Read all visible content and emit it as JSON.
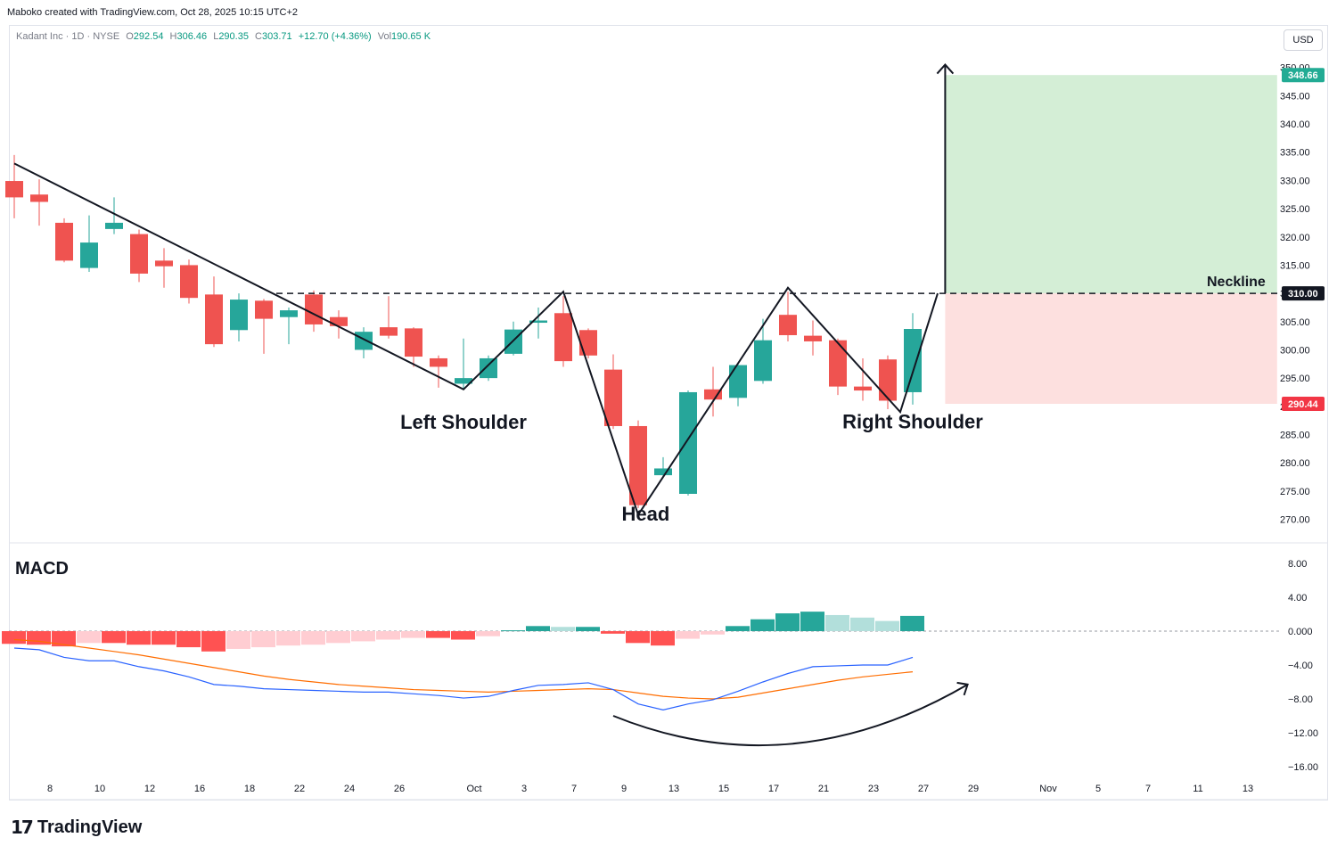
{
  "credit": "Maboko created with TradingView.com, Oct 28, 2025 10:15 UTC+2",
  "legend": {
    "symbol": "Kadant Inc · 1D · NYSE",
    "open_label": "O",
    "open": "292.54",
    "high_label": "H",
    "high": "306.46",
    "low_label": "L",
    "low": "290.35",
    "close_label": "C",
    "close": "303.71",
    "change": "+12.70 (+4.36%)",
    "vol_label": "Vol",
    "vol": "190.65 K"
  },
  "currency": "USD",
  "brand": "TradingView",
  "colors": {
    "up": "#26a69a",
    "down": "#ef5350",
    "target_zone": "#d4eed6",
    "stop_zone": "#fde0df",
    "macd_line": "#2962ff",
    "signal_line": "#ff6d00"
  },
  "chart_data": [
    {
      "type": "candlestick",
      "ylim": [
        266,
        350
      ],
      "price_ticks": [
        270,
        275,
        280,
        285,
        290,
        295,
        300,
        305,
        310,
        315,
        320,
        325,
        330,
        335,
        340,
        345,
        350
      ],
      "x_ticks": [
        {
          "slot": 1,
          "label": "8"
        },
        {
          "slot": 3,
          "label": "10"
        },
        {
          "slot": 5,
          "label": "12"
        },
        {
          "slot": 7,
          "label": "16"
        },
        {
          "slot": 9,
          "label": "18"
        },
        {
          "slot": 11,
          "label": "22"
        },
        {
          "slot": 13,
          "label": "24"
        },
        {
          "slot": 15,
          "label": "26"
        },
        {
          "slot": 18,
          "label": "Oct"
        },
        {
          "slot": 20,
          "label": "3"
        },
        {
          "slot": 22,
          "label": "7"
        },
        {
          "slot": 24,
          "label": "9"
        },
        {
          "slot": 26,
          "label": "13"
        },
        {
          "slot": 28,
          "label": "15"
        },
        {
          "slot": 30,
          "label": "17"
        },
        {
          "slot": 32,
          "label": "21"
        },
        {
          "slot": 34,
          "label": "23"
        },
        {
          "slot": 36,
          "label": "27"
        },
        {
          "slot": 38,
          "label": "29"
        },
        {
          "slot": 41,
          "label": "Nov"
        },
        {
          "slot": 43,
          "label": "5"
        },
        {
          "slot": 45,
          "label": "7"
        },
        {
          "slot": 47,
          "label": "11"
        },
        {
          "slot": 49,
          "label": "13"
        }
      ],
      "candles": [
        {
          "o": 329.9,
          "h": 334.5,
          "l": 323.3,
          "c": 327.0
        },
        {
          "o": 327.5,
          "h": 330.2,
          "l": 322.0,
          "c": 326.2
        },
        {
          "o": 322.5,
          "h": 323.3,
          "l": 315.5,
          "c": 315.8
        },
        {
          "o": 314.5,
          "h": 323.8,
          "l": 313.8,
          "c": 319.0
        },
        {
          "o": 321.4,
          "h": 327.0,
          "l": 320.5,
          "c": 322.5
        },
        {
          "o": 320.5,
          "h": 321.3,
          "l": 312.0,
          "c": 313.5
        },
        {
          "o": 315.8,
          "h": 318.0,
          "l": 311.0,
          "c": 314.8
        },
        {
          "o": 315.0,
          "h": 316.0,
          "l": 308.2,
          "c": 309.2
        },
        {
          "o": 309.8,
          "h": 313.0,
          "l": 300.5,
          "c": 301.0
        },
        {
          "o": 303.5,
          "h": 310.0,
          "l": 301.5,
          "c": 308.9
        },
        {
          "o": 308.7,
          "h": 309.0,
          "l": 299.3,
          "c": 305.5
        },
        {
          "o": 305.8,
          "h": 307.5,
          "l": 301.0,
          "c": 307.0
        },
        {
          "o": 309.8,
          "h": 310.5,
          "l": 303.2,
          "c": 304.5
        },
        {
          "o": 305.8,
          "h": 307.0,
          "l": 302.0,
          "c": 304.2
        },
        {
          "o": 300.0,
          "h": 304.0,
          "l": 298.5,
          "c": 303.2
        },
        {
          "o": 304.0,
          "h": 309.5,
          "l": 302.0,
          "c": 302.5
        },
        {
          "o": 303.8,
          "h": 304.0,
          "l": 297.0,
          "c": 298.8
        },
        {
          "o": 298.5,
          "h": 299.0,
          "l": 293.3,
          "c": 297.0
        },
        {
          "o": 294.0,
          "h": 302.0,
          "l": 293.0,
          "c": 295.0
        },
        {
          "o": 295.0,
          "h": 299.0,
          "l": 294.5,
          "c": 298.5
        },
        {
          "o": 299.3,
          "h": 305.0,
          "l": 299.0,
          "c": 303.6
        },
        {
          "o": 304.8,
          "h": 307.5,
          "l": 302.0,
          "c": 305.2
        },
        {
          "o": 306.5,
          "h": 309.5,
          "l": 297.0,
          "c": 298.0
        },
        {
          "o": 303.5,
          "h": 303.8,
          "l": 298.5,
          "c": 299.0
        },
        {
          "o": 296.5,
          "h": 299.2,
          "l": 286.0,
          "c": 286.5
        },
        {
          "o": 286.5,
          "h": 287.5,
          "l": 272.0,
          "c": 272.5
        },
        {
          "o": 277.8,
          "h": 281.0,
          "l": 277.5,
          "c": 279.0
        },
        {
          "o": 274.5,
          "h": 292.8,
          "l": 274.2,
          "c": 292.5
        },
        {
          "o": 293.0,
          "h": 297.0,
          "l": 288.2,
          "c": 291.2
        },
        {
          "o": 291.5,
          "h": 297.5,
          "l": 290.0,
          "c": 297.3
        },
        {
          "o": 294.5,
          "h": 305.5,
          "l": 294.0,
          "c": 301.7
        },
        {
          "o": 306.2,
          "h": 310.3,
          "l": 301.5,
          "c": 302.6
        },
        {
          "o": 302.5,
          "h": 305.2,
          "l": 299.0,
          "c": 301.5
        },
        {
          "o": 301.7,
          "h": 302.0,
          "l": 292.0,
          "c": 293.5
        },
        {
          "o": 293.5,
          "h": 298.5,
          "l": 291.0,
          "c": 292.8
        },
        {
          "o": 298.3,
          "h": 299.0,
          "l": 289.5,
          "c": 291.0
        },
        {
          "o": 292.5,
          "h": 306.5,
          "l": 290.3,
          "c": 303.7
        }
      ],
      "zigzag_pattern": [
        {
          "slot": 0,
          "y": 333.0
        },
        {
          "slot": 18,
          "y": 293.0
        },
        {
          "slot": 22,
          "y": 310.3
        },
        {
          "slot": 25,
          "y": 270.8
        },
        {
          "slot": 31,
          "y": 311.0
        },
        {
          "slot": 35.5,
          "y": 289.0
        },
        {
          "slot": 37,
          "y": 310.0
        }
      ],
      "neckline": {
        "price": 310.0,
        "label": "Neckline",
        "price_label": "310.00",
        "from_slot": 10.5
      },
      "projection": {
        "target_label": "348.66",
        "target": 348.66,
        "entry": 310.0,
        "stop_label": "290.44",
        "stop": 290.44,
        "from_slot": 37.3,
        "to_slot": 50.6,
        "arrow_top": 350.5
      },
      "annotations": [
        {
          "label": "Left Shoulder",
          "slot": 18,
          "price": 286.0
        },
        {
          "label": "Head",
          "slot": 25.3,
          "price": 269.8
        },
        {
          "label": "Right Shoulder",
          "slot": 36,
          "price": 286.1
        }
      ]
    },
    {
      "type": "macd",
      "title": "MACD",
      "ylim": [
        -17,
        9
      ],
      "ticks": [
        {
          "v": 8,
          "label": "8.00"
        },
        {
          "v": 4,
          "label": "4.00"
        },
        {
          "v": 0,
          "label": "0.000"
        },
        {
          "v": -4,
          "label": "−4.00"
        },
        {
          "v": -8,
          "label": "−8.00"
        },
        {
          "v": -12,
          "label": "−12.00"
        },
        {
          "v": -16,
          "label": "−16.00"
        }
      ],
      "histogram": [
        -1.5,
        -1.6,
        -1.8,
        -1.4,
        -1.4,
        -1.6,
        -1.6,
        -1.9,
        -2.4,
        -2.1,
        -1.9,
        -1.7,
        -1.6,
        -1.4,
        -1.2,
        -1.0,
        -0.8,
        -0.8,
        -1.0,
        -0.6,
        0.1,
        0.6,
        0.5,
        0.5,
        -0.3,
        -1.4,
        -1.7,
        -0.9,
        -0.4,
        0.6,
        1.4,
        2.1,
        2.3,
        1.9,
        1.6,
        1.2,
        1.8
      ],
      "macd": [
        -2.0,
        -2.2,
        -3.1,
        -3.5,
        -3.5,
        -4.2,
        -4.7,
        -5.4,
        -6.3,
        -6.5,
        -6.8,
        -6.9,
        -7.0,
        -7.1,
        -7.2,
        -7.2,
        -7.4,
        -7.6,
        -7.9,
        -7.7,
        -7.0,
        -6.4,
        -6.3,
        -6.1,
        -6.9,
        -8.6,
        -9.3,
        -8.6,
        -8.1,
        -7.1,
        -6.0,
        -5.0,
        -4.2,
        -4.1,
        -4.0,
        -4.0,
        -3.1
      ],
      "signal": [
        -1.0,
        -1.2,
        -1.6,
        -2.0,
        -2.4,
        -2.8,
        -3.3,
        -3.8,
        -4.3,
        -4.8,
        -5.3,
        -5.7,
        -6.0,
        -6.3,
        -6.5,
        -6.7,
        -6.9,
        -7.0,
        -7.1,
        -7.2,
        -7.1,
        -7.0,
        -6.9,
        -6.8,
        -6.9,
        -7.3,
        -7.7,
        -7.9,
        -8.0,
        -7.8,
        -7.3,
        -6.8,
        -6.3,
        -5.8,
        -5.4,
        -5.1,
        -4.8
      ],
      "curve_arrow": {
        "from_slot": 24,
        "to_slot": 38.2,
        "y_from": -10.0,
        "y_bottom": -14.8,
        "y_to": -6.3
      }
    }
  ]
}
